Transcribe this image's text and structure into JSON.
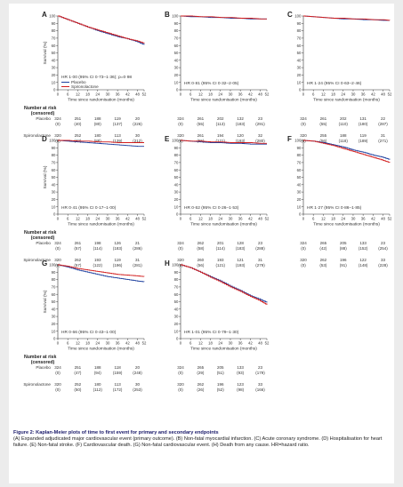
{
  "figure": {
    "caption_title": "Figure 2: Kaplan-Meier plots of time to first event for primary and secondary endpoints",
    "caption_text": "(A) Expanded adjudicated major cardiovascular event (primary outcome). (B) Non-fatal myocardial infarction. (C) Acute coronary syndrome. (D) Hospitalisation for heart failure. (E) Non-fatal stroke. (F) Cardiovascular death. (G) Non-fatal cardiovascular event. (H) Death from any cause. HR=hazard ratio."
  },
  "colors": {
    "placebo": "#1c3f9e",
    "spironolactone": "#d21c1c",
    "axis": "#333333"
  },
  "common": {
    "xlabel": "Time since randomisation (months)",
    "ylabel": "Survival (%)",
    "xticks": [
      "0",
      "6",
      "12",
      "18",
      "24",
      "30",
      "36",
      "42",
      "48",
      "52"
    ],
    "yticks": [
      "0",
      "10",
      "20",
      "30",
      "40",
      "50",
      "60",
      "70",
      "80",
      "90",
      "100"
    ],
    "risk_title_1": "Number at risk",
    "risk_title_2": "(censored)",
    "group_placebo": "Placebo",
    "group_spironolactone": "Spironolactone",
    "legend_placebo": "Placebo",
    "legend_spironolactone": "Spironolactone"
  },
  "chart_data": [
    {
      "panel": "A",
      "type": "line",
      "hr": "HR 1·00 (95% CI 0·73–1·36); p=0·98",
      "xlim": [
        0,
        52
      ],
      "ylim": [
        0,
        100
      ],
      "legend": "bottom-left",
      "series": [
        {
          "name": "Placebo",
          "x": [
            0,
            6,
            12,
            18,
            24,
            30,
            36,
            42,
            48,
            52
          ],
          "y": [
            100,
            95,
            90,
            85,
            80,
            76,
            72,
            69,
            65,
            61
          ]
        },
        {
          "name": "Spironolactone",
          "x": [
            0,
            6,
            12,
            18,
            24,
            30,
            36,
            42,
            48,
            52
          ],
          "y": [
            100,
            95,
            90,
            85,
            81,
            77,
            73,
            69,
            66,
            63
          ]
        }
      ],
      "risk": {
        "placebo": [
          "324",
          "251",
          "188",
          "119",
          "20"
        ],
        "placebo_c": [
          "(0)",
          "(40)",
          "(80)",
          "(137)",
          "(226)"
        ],
        "spiro": [
          "320",
          "252",
          "180",
          "113",
          "30"
        ],
        "spiro_c": [
          "(0)",
          "(42)",
          "(88)",
          "(139)",
          "(212)"
        ]
      }
    },
    {
      "panel": "B",
      "type": "line",
      "hr": "HR 0·81 (95% CI 0·32–2·05)",
      "xlim": [
        0,
        52
      ],
      "ylim": [
        0,
        100
      ],
      "series": [
        {
          "name": "Placebo",
          "x": [
            0,
            6,
            12,
            18,
            24,
            30,
            36,
            42,
            48,
            52
          ],
          "y": [
            100,
            99,
            99,
            98,
            98,
            97,
            97,
            96,
            96,
            96
          ]
        },
        {
          "name": "Spironolactone",
          "x": [
            0,
            6,
            12,
            18,
            24,
            30,
            36,
            42,
            48,
            52
          ],
          "y": [
            100,
            100,
            99,
            99,
            98,
            98,
            97,
            97,
            96,
            96
          ]
        }
      ],
      "risk": {
        "placebo": [
          "324",
          "261",
          "202",
          "132",
          "23"
        ],
        "placebo_c": [
          "(0)",
          "(55)",
          "(113)",
          "(183)",
          "(291)"
        ],
        "spiro": [
          "320",
          "261",
          "194",
          "120",
          "32"
        ],
        "spiro_c": [
          "(0)",
          "(55)",
          "(121)",
          "(193)",
          "(280)"
        ]
      }
    },
    {
      "panel": "C",
      "type": "line",
      "hr": "HR 1·24 (95% CI 0·63–2·46)",
      "xlim": [
        0,
        52
      ],
      "ylim": [
        0,
        100
      ],
      "series": [
        {
          "name": "Placebo",
          "x": [
            0,
            6,
            12,
            18,
            24,
            30,
            36,
            42,
            48,
            52
          ],
          "y": [
            100,
            99,
            98,
            97,
            96,
            96,
            95,
            95,
            94,
            94
          ]
        },
        {
          "name": "Spironolactone",
          "x": [
            0,
            6,
            12,
            18,
            24,
            30,
            36,
            42,
            48,
            52
          ],
          "y": [
            100,
            99,
            98,
            97,
            97,
            96,
            96,
            95,
            95,
            94
          ]
        }
      ],
      "risk": {
        "placebo": [
          "324",
          "261",
          "202",
          "131",
          "22"
        ],
        "placebo_c": [
          "(0)",
          "(55)",
          "(110)",
          "(180)",
          "(287)"
        ],
        "spiro": [
          "320",
          "255",
          "188",
          "119",
          "31"
        ],
        "spiro_c": [
          "(0)",
          "(56)",
          "(118)",
          "(189)",
          "(271)"
        ]
      }
    },
    {
      "panel": "D",
      "type": "line",
      "hr": "HR 0·41 (95% CI 0·17–1·00)",
      "xlim": [
        0,
        52
      ],
      "ylim": [
        0,
        100
      ],
      "series": [
        {
          "name": "Placebo",
          "x": [
            0,
            6,
            12,
            18,
            24,
            30,
            36,
            42,
            48,
            52
          ],
          "y": [
            100,
            99,
            98,
            97,
            96,
            95,
            94,
            93,
            92,
            92
          ]
        },
        {
          "name": "Spironolactone",
          "x": [
            0,
            6,
            12,
            18,
            24,
            30,
            36,
            42,
            48,
            52
          ],
          "y": [
            100,
            100,
            99,
            99,
            98,
            98,
            97,
            97,
            97,
            97
          ]
        }
      ],
      "risk": {
        "placebo": [
          "324",
          "261",
          "198",
          "126",
          "21"
        ],
        "placebo_c": [
          "(0)",
          "(57)",
          "(114)",
          "(183)",
          "(286)"
        ],
        "spiro": [
          "320",
          "262",
          "193",
          "119",
          "31"
        ],
        "spiro_c": [
          "(0)",
          "(57)",
          "(122)",
          "(196)",
          "(281)"
        ]
      }
    },
    {
      "panel": "E",
      "type": "line",
      "hr": "HR 0·62 (95% CI 0·26–1·53)",
      "xlim": [
        0,
        52
      ],
      "ylim": [
        0,
        100
      ],
      "series": [
        {
          "name": "Placebo",
          "x": [
            0,
            6,
            12,
            18,
            24,
            30,
            36,
            42,
            48,
            52
          ],
          "y": [
            100,
            99,
            98,
            97,
            97,
            96,
            96,
            95,
            95,
            95
          ]
        },
        {
          "name": "Spironolactone",
          "x": [
            0,
            6,
            12,
            18,
            24,
            30,
            36,
            42,
            48,
            52
          ],
          "y": [
            100,
            99,
            99,
            98,
            98,
            97,
            97,
            97,
            96,
            96
          ]
        }
      ],
      "risk": {
        "placebo": [
          "324",
          "262",
          "201",
          "128",
          "23"
        ],
        "placebo_c": [
          "(0)",
          "(58)",
          "(114)",
          "(183)",
          "(288)"
        ],
        "spiro": [
          "320",
          "260",
          "193",
          "121",
          "31"
        ],
        "spiro_c": [
          "(0)",
          "(56)",
          "(121)",
          "(193)",
          "(279)"
        ]
      }
    },
    {
      "panel": "F",
      "type": "line",
      "hr": "HR 1·27 (95% CI 0·86–1·85)",
      "xlim": [
        0,
        52
      ],
      "ylim": [
        0,
        100
      ],
      "series": [
        {
          "name": "Placebo",
          "x": [
            0,
            6,
            12,
            18,
            24,
            30,
            36,
            42,
            48,
            52
          ],
          "y": [
            100,
            99,
            97,
            94,
            91,
            87,
            84,
            80,
            77,
            74
          ]
        },
        {
          "name": "Spironolactone",
          "x": [
            0,
            6,
            12,
            18,
            24,
            30,
            36,
            42,
            48,
            52
          ],
          "y": [
            100,
            99,
            96,
            93,
            89,
            85,
            81,
            77,
            73,
            70
          ]
        }
      ],
      "risk": {
        "placebo": [
          "324",
          "265",
          "205",
          "133",
          "23"
        ],
        "placebo_c": [
          "(0)",
          "(42)",
          "(88)",
          "(152)",
          "(254)"
        ],
        "spiro": [
          "320",
          "262",
          "196",
          "122",
          "33"
        ],
        "spiro_c": [
          "(0)",
          "(53)",
          "(91)",
          "(148)",
          "(228)"
        ]
      }
    },
    {
      "panel": "G",
      "type": "line",
      "hr": "HR 0·66 (95% CI 0·43–1·00)",
      "xlim": [
        0,
        52
      ],
      "ylim": [
        0,
        100
      ],
      "series": [
        {
          "name": "Placebo",
          "x": [
            0,
            6,
            12,
            18,
            24,
            30,
            36,
            42,
            48,
            52
          ],
          "y": [
            100,
            97,
            93,
            90,
            87,
            84,
            82,
            80,
            78,
            77
          ]
        },
        {
          "name": "Spironolactone",
          "x": [
            0,
            6,
            12,
            18,
            24,
            30,
            36,
            42,
            48,
            52
          ],
          "y": [
            100,
            98,
            95,
            93,
            91,
            89,
            87,
            86,
            85,
            84
          ]
        }
      ],
      "risk": {
        "placebo": [
          "324",
          "251",
          "188",
          "118",
          "20"
        ],
        "placebo_c": [
          "(0)",
          "(47)",
          "(94)",
          "(159)",
          "(248)"
        ],
        "spiro": [
          "320",
          "252",
          "180",
          "113",
          "30"
        ],
        "spiro_c": [
          "(0)",
          "(50)",
          "(112)",
          "(172)",
          "(253)"
        ]
      }
    },
    {
      "panel": "H",
      "type": "line",
      "hr": "HR 1·01 (95% CI 0·79–1·30)",
      "xlim": [
        0,
        52
      ],
      "ylim": [
        0,
        100
      ],
      "series": [
        {
          "name": "Placebo",
          "x": [
            0,
            6,
            12,
            18,
            24,
            30,
            36,
            42,
            48,
            52
          ],
          "y": [
            100,
            96,
            90,
            84,
            78,
            71,
            65,
            58,
            53,
            49
          ]
        },
        {
          "name": "Spironolactone",
          "x": [
            0,
            6,
            12,
            18,
            24,
            30,
            36,
            42,
            48,
            52
          ],
          "y": [
            100,
            96,
            90,
            83,
            77,
            70,
            64,
            57,
            51,
            46
          ]
        }
      ],
      "risk": {
        "placebo": [
          "324",
          "265",
          "205",
          "133",
          "23"
        ],
        "placebo_c": [
          "(0)",
          "(29)",
          "(51)",
          "(93)",
          "(179)"
        ],
        "spiro": [
          "320",
          "262",
          "196",
          "123",
          "33"
        ],
        "spiro_c": [
          "(0)",
          "(26)",
          "(52)",
          "(98)",
          "(166)"
        ]
      }
    }
  ]
}
